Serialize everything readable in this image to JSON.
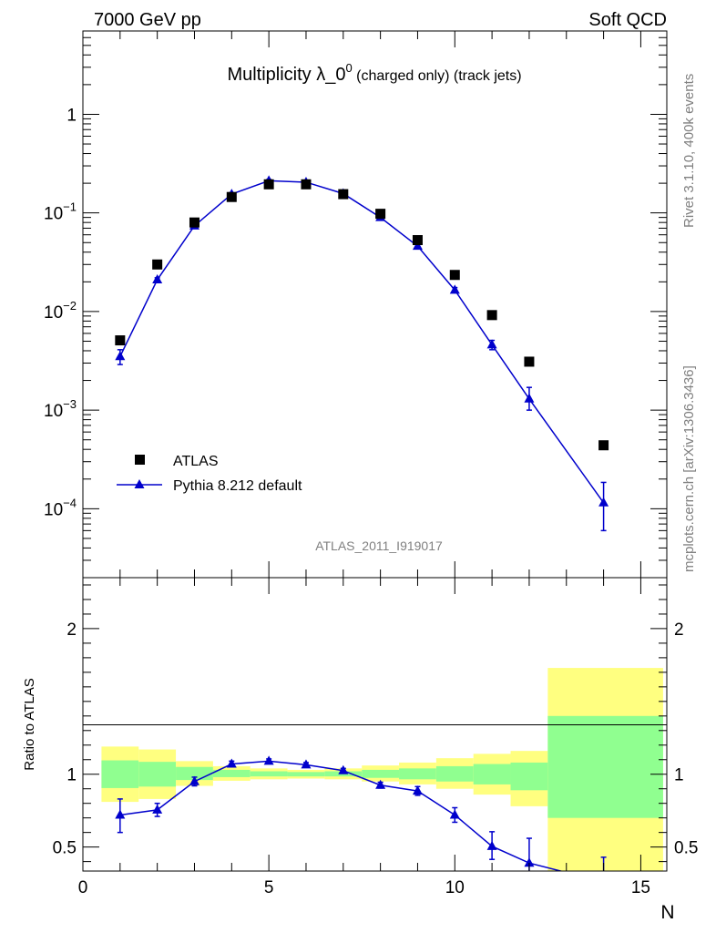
{
  "header": {
    "left": "7000 GeV pp",
    "right": "Soft QCD",
    "side_top": "Rivet 3.1.10,  400k events",
    "side_bottom": "mcplots.cern.ch [arXiv:1306.3436]"
  },
  "chart_data": [
    {
      "type": "scatter",
      "title_main": "Multiplicity λ_0",
      "title_sup": "0",
      "title_rest": " (charged only) (track jets)",
      "xlabel": "N",
      "ylabel": "",
      "log_y": true,
      "xlim": [
        0,
        15.7
      ],
      "ylim": [
        2e-05,
        7
      ],
      "y_tick_labels": [
        {
          "value": 1,
          "base": "1",
          "exp": ""
        },
        {
          "value": 0.1,
          "base": "10",
          "exp": "−1"
        },
        {
          "value": 0.01,
          "base": "10",
          "exp": "−2"
        },
        {
          "value": 0.001,
          "base": "10",
          "exp": "−3"
        },
        {
          "value": 0.0001,
          "base": "10",
          "exp": "−4"
        }
      ],
      "watermark": "ATLAS_2011_I919017",
      "legend_position": "bottom-left",
      "series": [
        {
          "name": "ATLAS",
          "marker": "square",
          "color": "#000000",
          "x": [
            1,
            2,
            3,
            4,
            5,
            6,
            7,
            8,
            9,
            10,
            11,
            12,
            14
          ],
          "y": [
            0.0051,
            0.03,
            0.08,
            0.145,
            0.195,
            0.195,
            0.155,
            0.098,
            0.053,
            0.0235,
            0.0092,
            0.0031,
            0.00044
          ]
        },
        {
          "name": "Pythia 8.212 default",
          "marker": "triangle",
          "color": "#0000cc",
          "x": [
            1,
            2,
            3,
            4,
            5,
            6,
            7,
            8,
            9,
            10,
            11,
            12,
            14
          ],
          "y": [
            0.0035,
            0.021,
            0.074,
            0.155,
            0.212,
            0.205,
            0.157,
            0.09,
            0.046,
            0.0165,
            0.0046,
            0.0013,
            0.000115
          ],
          "err_low": [
            0.0006,
            0.001,
            0.003,
            0.005,
            0.006,
            0.006,
            0.005,
            0.003,
            0.002,
            0.001,
            0.0005,
            0.0003,
            5.5e-05
          ],
          "err_high": [
            0.0006,
            0.001,
            0.003,
            0.005,
            0.006,
            0.006,
            0.005,
            0.003,
            0.002,
            0.001,
            0.0005,
            0.0004,
            7e-05
          ]
        }
      ]
    },
    {
      "type": "line",
      "ylabel": "Ratio to ATLAS",
      "xlabel": "N",
      "xlim": [
        0,
        15.7
      ],
      "ylim": [
        0.335,
        2.35
      ],
      "x_ticks": [
        0,
        5,
        10,
        15
      ],
      "y_ticks": [
        0.5,
        1,
        2
      ],
      "y_tick_labels": [
        "0.5",
        "1",
        "2"
      ],
      "bands": [
        {
          "x0": 0.5,
          "x1": 1.5,
          "yellow": [
            0.81,
            1.19
          ],
          "green": [
            0.905,
            1.095
          ]
        },
        {
          "x0": 1.5,
          "x1": 2.5,
          "yellow": [
            0.83,
            1.17
          ],
          "green": [
            0.915,
            1.085
          ]
        },
        {
          "x0": 2.5,
          "x1": 3.5,
          "yellow": [
            0.92,
            1.09
          ],
          "green": [
            0.96,
            1.05
          ]
        },
        {
          "x0": 3.5,
          "x1": 4.5,
          "yellow": [
            0.955,
            1.055
          ],
          "green": [
            0.98,
            1.03
          ]
        },
        {
          "x0": 4.5,
          "x1": 5.5,
          "yellow": [
            0.965,
            1.04
          ],
          "green": [
            0.985,
            1.02
          ]
        },
        {
          "x0": 5.5,
          "x1": 6.5,
          "yellow": [
            0.97,
            1.03
          ],
          "green": [
            0.985,
            1.015
          ]
        },
        {
          "x0": 6.5,
          "x1": 7.5,
          "yellow": [
            0.965,
            1.04
          ],
          "green": [
            0.985,
            1.02
          ]
        },
        {
          "x0": 7.5,
          "x1": 8.5,
          "yellow": [
            0.95,
            1.06
          ],
          "green": [
            0.975,
            1.03
          ]
        },
        {
          "x0": 8.5,
          "x1": 9.5,
          "yellow": [
            0.93,
            1.08
          ],
          "green": [
            0.965,
            1.04
          ]
        },
        {
          "x0": 9.5,
          "x1": 10.5,
          "yellow": [
            0.9,
            1.11
          ],
          "green": [
            0.95,
            1.055
          ]
        },
        {
          "x0": 10.5,
          "x1": 11.5,
          "yellow": [
            0.86,
            1.14
          ],
          "green": [
            0.93,
            1.07
          ]
        },
        {
          "x0": 11.5,
          "x1": 12.5,
          "yellow": [
            0.78,
            1.16
          ],
          "green": [
            0.89,
            1.08
          ]
        },
        {
          "x0": 12.5,
          "x1": 15.6,
          "yellow": [
            0.0,
            1.73
          ],
          "green": [
            0.7,
            1.4
          ]
        }
      ],
      "series": [
        {
          "name": "Pythia 8.212 default",
          "color": "#0000cc",
          "x": [
            1,
            2,
            3,
            4,
            5,
            6,
            7,
            8,
            9,
            10,
            11,
            12,
            14
          ],
          "y": [
            0.72,
            0.755,
            0.95,
            1.07,
            1.09,
            1.065,
            1.025,
            0.925,
            0.885,
            0.72,
            0.505,
            0.39,
            0.26
          ],
          "err_low": [
            0.12,
            0.045,
            0.03,
            0.02,
            0.015,
            0.015,
            0.015,
            0.02,
            0.03,
            0.05,
            0.09,
            0.1,
            0.12
          ],
          "err_high": [
            0.11,
            0.045,
            0.03,
            0.02,
            0.015,
            0.015,
            0.015,
            0.02,
            0.03,
            0.05,
            0.1,
            0.17,
            0.17
          ]
        }
      ]
    }
  ]
}
